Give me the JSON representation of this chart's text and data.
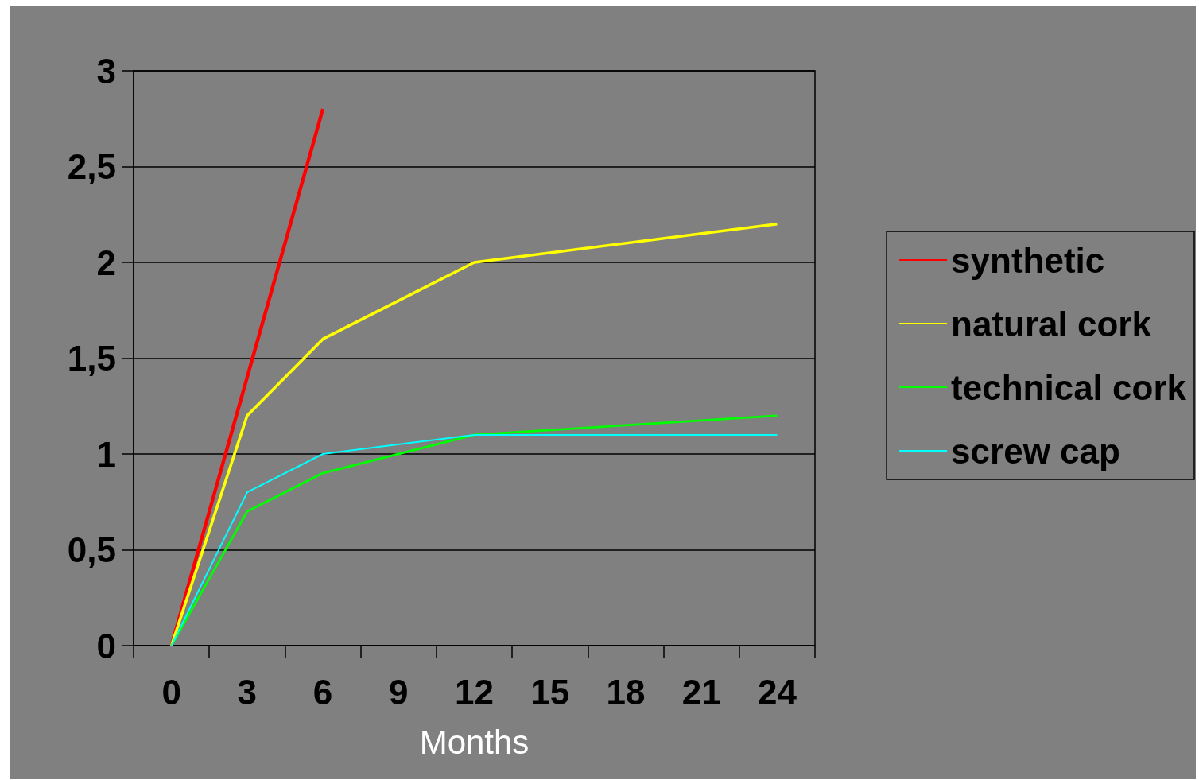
{
  "chart_data": {
    "type": "line",
    "xlabel": "Months",
    "categories": [
      "0",
      "3",
      "6",
      "9",
      "12",
      "15",
      "18",
      "21",
      "24"
    ],
    "series": [
      {
        "name": "synthetic",
        "color": "#ff0000",
        "values": [
          0,
          1.4,
          2.8,
          null,
          null,
          null,
          null,
          null,
          null
        ]
      },
      {
        "name": "natural cork",
        "color": "#ffff00",
        "values": [
          0,
          1.2,
          1.6,
          null,
          2.0,
          null,
          null,
          null,
          2.2
        ]
      },
      {
        "name": "technical cork",
        "color": "#00ff00",
        "values": [
          0,
          0.7,
          0.9,
          null,
          1.1,
          null,
          null,
          null,
          1.2
        ]
      },
      {
        "name": "screw cap",
        "color": "#00ffff",
        "values": [
          0,
          0.8,
          1.0,
          null,
          1.1,
          null,
          null,
          null,
          1.1
        ]
      }
    ],
    "ylim": [
      0,
      3
    ],
    "yticks": [
      0,
      {
        "value": 0.5,
        "label": "0,5"
      },
      1,
      {
        "value": 1.5,
        "label": "1,5"
      },
      2,
      {
        "value": 2.5,
        "label": "2,5"
      },
      3
    ],
    "grid": "y",
    "legend": "right",
    "marker": "none",
    "line_style": "solid"
  }
}
